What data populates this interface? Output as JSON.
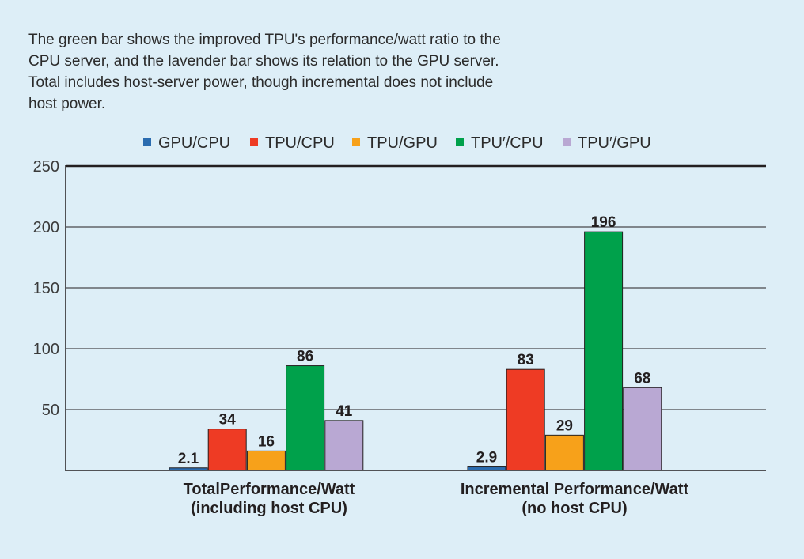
{
  "caption": "The green bar shows the improved TPU's performance/watt ratio to the CPU server, and the lavender bar shows its relation to the GPU server. Total includes host-server power, though incremental does not include host power.",
  "chart_data": {
    "type": "bar",
    "title": "",
    "xlabel": "",
    "ylabel": "",
    "ylim": [
      0,
      250
    ],
    "yticks": [
      50,
      100,
      150,
      200,
      250
    ],
    "grid": true,
    "legend_position": "top",
    "categories": [
      [
        "TotalPerformance/Watt",
        "(including host CPU)"
      ],
      [
        "Incremental Performance/Watt",
        "(no host CPU)"
      ]
    ],
    "series": [
      {
        "name": "GPU/CPU",
        "color": "#2b6cb0",
        "values": [
          2.1,
          2.9
        ],
        "labels": [
          "2.1",
          "2.9"
        ]
      },
      {
        "name": "TPU/CPU",
        "color": "#ee3b24",
        "values": [
          34,
          83
        ],
        "labels": [
          "34",
          "83"
        ]
      },
      {
        "name": "TPU/GPU",
        "color": "#f7a11a",
        "values": [
          16,
          29
        ],
        "labels": [
          "16",
          "29"
        ]
      },
      {
        "name": "TPU′/CPU",
        "color": "#00a14b",
        "values": [
          86,
          196
        ],
        "labels": [
          "86",
          "196"
        ]
      },
      {
        "name": "TPU′/GPU",
        "color": "#b9a8d3",
        "values": [
          41,
          68
        ],
        "labels": [
          "41",
          "68"
        ]
      }
    ]
  }
}
